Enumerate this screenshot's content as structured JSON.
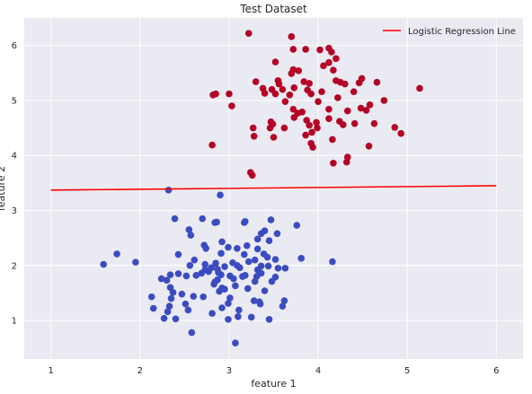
{
  "chart_data": {
    "type": "scatter",
    "title": "Test Dataset",
    "xlabel": "feature 1",
    "ylabel": "feature 2",
    "xlim": [
      0.7,
      6.3
    ],
    "ylim": [
      0.3,
      6.5
    ],
    "xticks": [
      1,
      2,
      3,
      4,
      5,
      6
    ],
    "yticks": [
      1,
      2,
      3,
      4,
      5,
      6
    ],
    "grid": true,
    "legend_position": "top-right",
    "background": "#eaeaf2",
    "line": {
      "name": "Logistic Regression Line",
      "color": "#ff0000",
      "x": [
        1,
        6
      ],
      "y": [
        3.37,
        3.45
      ]
    },
    "series": [
      {
        "color": "#b40426",
        "points": [
          [
            3.22,
            6.22
          ],
          [
            3.7,
            6.16
          ],
          [
            3.72,
            5.93
          ],
          [
            3.86,
            5.93
          ],
          [
            4.02,
            5.92
          ],
          [
            4.12,
            5.95
          ],
          [
            4.15,
            5.88
          ],
          [
            4.2,
            5.76
          ],
          [
            4.12,
            5.69
          ],
          [
            3.52,
            5.7
          ],
          [
            4.06,
            5.63
          ],
          [
            4.17,
            5.55
          ],
          [
            3.72,
            5.56
          ],
          [
            3.78,
            5.54
          ],
          [
            3.7,
            5.49
          ],
          [
            3.3,
            5.34
          ],
          [
            3.55,
            5.36
          ],
          [
            3.56,
            5.3
          ],
          [
            3.84,
            5.34
          ],
          [
            3.9,
            5.31
          ],
          [
            4.2,
            5.36
          ],
          [
            4.25,
            5.33
          ],
          [
            4.3,
            5.3
          ],
          [
            4.49,
            5.4
          ],
          [
            4.46,
            5.32
          ],
          [
            4.66,
            5.33
          ],
          [
            3.38,
            5.22
          ],
          [
            3.48,
            5.2
          ],
          [
            3.6,
            5.2
          ],
          [
            3.73,
            5.23
          ],
          [
            3.88,
            5.19
          ],
          [
            4.04,
            5.16
          ],
          [
            4.4,
            5.16
          ],
          [
            5.14,
            5.22
          ],
          [
            2.82,
            5.1
          ],
          [
            2.85,
            5.12
          ],
          [
            3.0,
            5.12
          ],
          [
            3.4,
            5.13
          ],
          [
            3.52,
            5.12
          ],
          [
            3.68,
            5.1
          ],
          [
            3.92,
            5.12
          ],
          [
            4.22,
            5.05
          ],
          [
            3.03,
            4.9
          ],
          [
            3.63,
            4.98
          ],
          [
            4.0,
            4.98
          ],
          [
            4.58,
            4.92
          ],
          [
            4.74,
            5.0
          ],
          [
            3.72,
            4.84
          ],
          [
            3.77,
            4.77
          ],
          [
            3.82,
            4.79
          ],
          [
            4.12,
            4.84
          ],
          [
            4.33,
            4.81
          ],
          [
            4.48,
            4.86
          ],
          [
            4.54,
            4.82
          ],
          [
            3.73,
            4.69
          ],
          [
            3.87,
            4.64
          ],
          [
            3.98,
            4.6
          ],
          [
            4.12,
            4.67
          ],
          [
            4.24,
            4.62
          ],
          [
            3.47,
            4.61
          ],
          [
            3.49,
            4.57
          ],
          [
            3.46,
            4.5
          ],
          [
            3.62,
            4.5
          ],
          [
            3.9,
            4.55
          ],
          [
            3.99,
            4.5
          ],
          [
            4.28,
            4.56
          ],
          [
            4.41,
            4.58
          ],
          [
            3.27,
            4.5
          ],
          [
            3.28,
            4.35
          ],
          [
            3.5,
            4.33
          ],
          [
            3.86,
            4.37
          ],
          [
            3.93,
            4.42
          ],
          [
            4.16,
            4.29
          ],
          [
            3.92,
            4.22
          ],
          [
            3.94,
            4.15
          ],
          [
            4.86,
            4.51
          ],
          [
            4.93,
            4.4
          ],
          [
            4.63,
            4.58
          ],
          [
            4.57,
            4.17
          ],
          [
            2.81,
            4.19
          ],
          [
            4.33,
            3.97
          ],
          [
            4.17,
            3.86
          ],
          [
            4.32,
            3.88
          ],
          [
            3.24,
            3.69
          ],
          [
            3.26,
            3.64
          ]
        ]
      },
      {
        "color": "#3b4cc0",
        "points": [
          [
            2.32,
            3.37
          ],
          [
            2.9,
            3.28
          ],
          [
            2.39,
            2.85
          ],
          [
            2.7,
            2.85
          ],
          [
            2.55,
            2.65
          ],
          [
            2.84,
            2.78
          ],
          [
            2.86,
            2.79
          ],
          [
            3.17,
            2.78
          ],
          [
            3.18,
            2.8
          ],
          [
            3.47,
            2.83
          ],
          [
            3.76,
            2.73
          ],
          [
            3.36,
            2.58
          ],
          [
            3.4,
            2.63
          ],
          [
            3.54,
            2.58
          ],
          [
            3.32,
            2.48
          ],
          [
            3.45,
            2.45
          ],
          [
            2.57,
            2.55
          ],
          [
            2.72,
            2.37
          ],
          [
            2.92,
            2.43
          ],
          [
            3.2,
            2.36
          ],
          [
            2.74,
            2.31
          ],
          [
            2.99,
            2.33
          ],
          [
            3.09,
            2.31
          ],
          [
            1.74,
            2.21
          ],
          [
            2.43,
            2.2
          ],
          [
            2.91,
            2.22
          ],
          [
            3.32,
            2.3
          ],
          [
            3.39,
            2.21
          ],
          [
            3.17,
            2.2
          ],
          [
            3.43,
            2.15
          ],
          [
            1.95,
            2.06
          ],
          [
            3.29,
            2.1
          ],
          [
            3.52,
            2.11
          ],
          [
            3.81,
            2.13
          ],
          [
            4.16,
            2.07
          ],
          [
            1.59,
            2.02
          ],
          [
            2.56,
            2.0
          ],
          [
            2.73,
            2.02
          ],
          [
            2.85,
            2.04
          ],
          [
            3.04,
            2.05
          ],
          [
            3.22,
            2.07
          ],
          [
            3.36,
            1.99
          ],
          [
            3.44,
            1.99
          ],
          [
            3.55,
            1.95
          ],
          [
            3.63,
            1.95
          ],
          [
            2.73,
            1.92
          ],
          [
            2.8,
            1.96
          ],
          [
            2.87,
            1.93
          ],
          [
            2.95,
            1.98
          ],
          [
            3.12,
            1.96
          ],
          [
            3.32,
            1.92
          ],
          [
            2.43,
            1.85
          ],
          [
            2.69,
            1.86
          ],
          [
            2.77,
            1.89
          ],
          [
            2.88,
            1.87
          ],
          [
            2.91,
            1.83
          ],
          [
            3.18,
            1.82
          ],
          [
            3.36,
            1.86
          ],
          [
            2.34,
            1.83
          ],
          [
            2.52,
            1.81
          ],
          [
            2.63,
            1.82
          ],
          [
            3.01,
            1.81
          ],
          [
            3.05,
            1.76
          ],
          [
            3.15,
            1.8
          ],
          [
            3.31,
            1.8
          ],
          [
            3.52,
            1.79
          ],
          [
            2.24,
            1.76
          ],
          [
            2.3,
            1.73
          ],
          [
            2.84,
            1.7
          ],
          [
            2.87,
            1.74
          ],
          [
            3.29,
            1.71
          ],
          [
            3.48,
            1.71
          ],
          [
            2.83,
            1.66
          ],
          [
            3.07,
            1.63
          ],
          [
            2.34,
            1.6
          ],
          [
            2.92,
            1.59
          ],
          [
            3.21,
            1.58
          ],
          [
            2.37,
            1.51
          ],
          [
            2.47,
            1.48
          ],
          [
            2.89,
            1.53
          ],
          [
            2.95,
            1.57
          ],
          [
            3.4,
            1.54
          ],
          [
            2.13,
            1.43
          ],
          [
            2.35,
            1.4
          ],
          [
            2.6,
            1.44
          ],
          [
            2.71,
            1.43
          ],
          [
            3.01,
            1.41
          ],
          [
            3.28,
            1.36
          ],
          [
            3.34,
            1.34
          ],
          [
            3.62,
            1.36
          ],
          [
            2.99,
            1.31
          ],
          [
            3.35,
            1.3
          ],
          [
            2.33,
            1.26
          ],
          [
            2.51,
            1.3
          ],
          [
            2.15,
            1.22
          ],
          [
            2.54,
            1.19
          ],
          [
            2.92,
            1.23
          ],
          [
            3.11,
            1.19
          ],
          [
            3.6,
            1.26
          ],
          [
            2.81,
            1.13
          ],
          [
            3.1,
            1.07
          ],
          [
            3.25,
            1.06
          ],
          [
            2.27,
            1.04
          ],
          [
            2.4,
            1.03
          ],
          [
            2.99,
            1.02
          ],
          [
            3.45,
            1.02
          ],
          [
            2.58,
            0.78
          ],
          [
            3.07,
            0.59
          ],
          [
            2.31,
            1.16
          ],
          [
            2.61,
            2.1
          ],
          [
            3.09,
            2.0
          ]
        ]
      }
    ]
  }
}
